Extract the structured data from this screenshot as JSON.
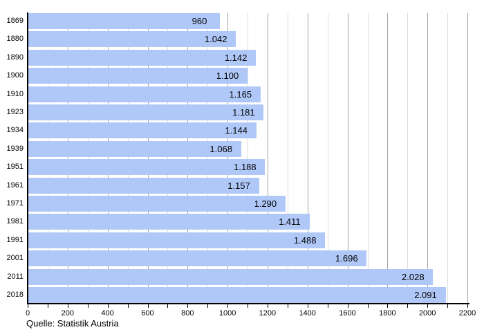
{
  "chart_data": {
    "type": "bar",
    "orientation": "horizontal",
    "title": "",
    "categories": [
      "1869",
      "1880",
      "1890",
      "1900",
      "1910",
      "1923",
      "1934",
      "1939",
      "1951",
      "1961",
      "1971",
      "1981",
      "1991",
      "2001",
      "2011",
      "2018"
    ],
    "values": [
      960,
      1042,
      1142,
      1100,
      1165,
      1181,
      1144,
      1068,
      1188,
      1157,
      1290,
      1411,
      1488,
      1696,
      2028,
      2091
    ],
    "value_labels": [
      "960",
      "1.042",
      "1.142",
      "1.100",
      "1.165",
      "1.181",
      "1.144",
      "1.068",
      "1.188",
      "1.157",
      "1.290",
      "1.411",
      "1.488",
      "1.696",
      "2.028",
      "2.091"
    ],
    "xlabel": "",
    "ylabel": "",
    "xlim": [
      0,
      2200
    ],
    "x_tick_step_minor": 100,
    "x_tick_step_major": 200,
    "x_tick_labels": [
      "0",
      "200",
      "400",
      "600",
      "800",
      "1000",
      "1200",
      "1400",
      "1600",
      "1800",
      "2000",
      "2200"
    ],
    "grid": true,
    "legend": null,
    "colors": {
      "bar_fill": "#b0c8f8",
      "grid_major": "#a3a3a3",
      "grid_minor": "#dcdcdc",
      "axis": "#000000",
      "text": "#000000"
    }
  },
  "footer": {
    "source": "Quelle: Statistik Austria"
  }
}
